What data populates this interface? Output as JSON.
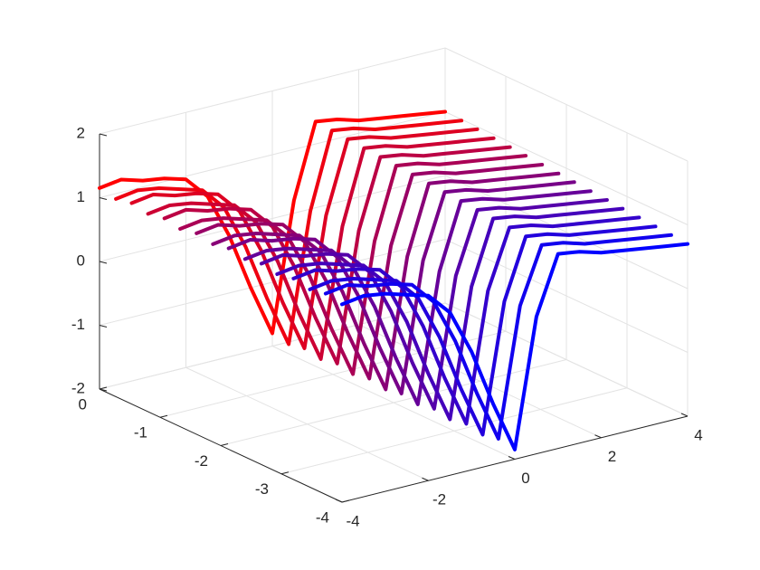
{
  "chart_data": {
    "type": "line3d",
    "x": [
      -4,
      -3.5,
      -3,
      -2.5,
      -2,
      -1.5,
      -1,
      -0.5,
      0,
      0.5,
      1,
      1.5,
      2,
      2.5,
      3,
      3.5,
      4
    ],
    "series": [
      {
        "color": "#ff0000",
        "y": 0,
        "values": [
          1.15,
          1.2,
          1.1,
          1.05,
          0.95,
          0.6,
          -0.1,
          -1.0,
          -1.8,
          0.2,
          1.35,
          1.3,
          1.2,
          1.15,
          1.1,
          1.05,
          1.0
        ]
      },
      {
        "color": "#ee0011",
        "y": -0.27,
        "values": [
          1.1,
          1.15,
          1.1,
          1.0,
          0.9,
          0.55,
          -0.15,
          -1.05,
          -1.85,
          0.15,
          1.33,
          1.28,
          1.18,
          1.13,
          1.08,
          1.03,
          0.98
        ]
      },
      {
        "color": "#dd0022",
        "y": -0.53,
        "values": [
          1.15,
          1.2,
          1.1,
          1.05,
          0.95,
          0.6,
          -0.1,
          -1.0,
          -1.8,
          0.2,
          1.31,
          1.26,
          1.16,
          1.11,
          1.06,
          1.01,
          0.96
        ]
      },
      {
        "color": "#cc0033",
        "y": -0.8,
        "values": [
          1.1,
          1.15,
          1.1,
          1.0,
          0.9,
          0.55,
          -0.15,
          -1.05,
          -1.85,
          0.15,
          1.29,
          1.24,
          1.14,
          1.09,
          1.04,
          0.99,
          0.94
        ]
      },
      {
        "color": "#bb0044",
        "y": -1.07,
        "values": [
          1.15,
          1.2,
          1.1,
          1.05,
          0.95,
          0.6,
          -0.1,
          -1.0,
          -1.8,
          0.2,
          1.27,
          1.22,
          1.12,
          1.07,
          1.02,
          0.97,
          0.92
        ]
      },
      {
        "color": "#aa0055",
        "y": -1.33,
        "values": [
          1.1,
          1.15,
          1.1,
          1.0,
          0.9,
          0.55,
          -0.15,
          -1.05,
          -1.85,
          0.15,
          1.25,
          1.2,
          1.1,
          1.05,
          1.0,
          0.95,
          0.9
        ]
      },
      {
        "color": "#990066",
        "y": -1.6,
        "values": [
          1.15,
          1.2,
          1.1,
          1.05,
          0.95,
          0.6,
          -0.1,
          -1.0,
          -1.8,
          0.2,
          1.23,
          1.18,
          1.08,
          1.03,
          0.98,
          0.93,
          0.88
        ]
      },
      {
        "color": "#880077",
        "y": -1.87,
        "values": [
          1.1,
          1.15,
          1.1,
          1.0,
          0.9,
          0.55,
          -0.15,
          -1.05,
          -1.85,
          0.15,
          1.21,
          1.16,
          1.06,
          1.01,
          0.96,
          0.91,
          0.86
        ]
      },
      {
        "color": "#770088",
        "y": -2.13,
        "values": [
          1.15,
          1.2,
          1.1,
          1.05,
          0.95,
          0.6,
          -0.1,
          -1.0,
          -1.8,
          0.2,
          1.19,
          1.14,
          1.04,
          0.99,
          0.94,
          0.89,
          0.84
        ]
      },
      {
        "color": "#660099",
        "y": -2.4,
        "values": [
          1.1,
          1.15,
          1.1,
          1.0,
          0.9,
          0.55,
          -0.15,
          -1.05,
          -1.85,
          0.15,
          1.17,
          1.12,
          1.02,
          0.97,
          0.92,
          0.87,
          0.82
        ]
      },
      {
        "color": "#5500aa",
        "y": -2.67,
        "values": [
          1.15,
          1.2,
          1.1,
          1.05,
          0.95,
          0.6,
          -0.1,
          -1.0,
          -1.8,
          0.2,
          1.15,
          1.1,
          1.0,
          0.95,
          0.9,
          0.85,
          0.8
        ]
      },
      {
        "color": "#4400bb",
        "y": -2.93,
        "values": [
          1.1,
          1.15,
          1.1,
          1.0,
          0.9,
          0.55,
          -0.15,
          -1.05,
          -1.85,
          0.15,
          1.13,
          1.08,
          0.98,
          0.93,
          0.88,
          0.83,
          0.78
        ]
      },
      {
        "color": "#3300cc",
        "y": -3.2,
        "values": [
          1.15,
          1.2,
          1.1,
          1.05,
          0.95,
          0.6,
          -0.1,
          -1.0,
          -1.8,
          0.2,
          1.11,
          1.06,
          0.96,
          0.91,
          0.86,
          0.81,
          0.76
        ]
      },
      {
        "color": "#2200dd",
        "y": -3.47,
        "values": [
          1.1,
          1.15,
          1.1,
          1.0,
          0.9,
          0.55,
          -0.15,
          -1.05,
          -1.85,
          0.15,
          1.09,
          1.04,
          0.94,
          0.89,
          0.84,
          0.79,
          0.74
        ]
      },
      {
        "color": "#1100ee",
        "y": -3.73,
        "values": [
          1.15,
          1.2,
          1.1,
          1.05,
          0.95,
          0.6,
          -0.1,
          -1.0,
          -1.8,
          0.2,
          1.07,
          1.02,
          0.92,
          0.87,
          0.82,
          0.77,
          0.72
        ]
      },
      {
        "color": "#0000ff",
        "y": -4,
        "values": [
          1.1,
          1.15,
          1.1,
          1.0,
          0.9,
          0.55,
          -0.15,
          -1.05,
          -1.85,
          0.15,
          1.05,
          1.0,
          0.9,
          0.85,
          0.8,
          0.75,
          0.7
        ]
      }
    ],
    "xlim": [
      -4,
      4
    ],
    "xticks": [
      -4,
      -2,
      0,
      2,
      4
    ],
    "ylim": [
      -4,
      0
    ],
    "yticks": [
      0,
      -1,
      -2,
      -3,
      -4
    ],
    "zlim": [
      -2,
      2
    ],
    "zticks": [
      -2,
      -1,
      0,
      1,
      2
    ],
    "grid": true
  }
}
